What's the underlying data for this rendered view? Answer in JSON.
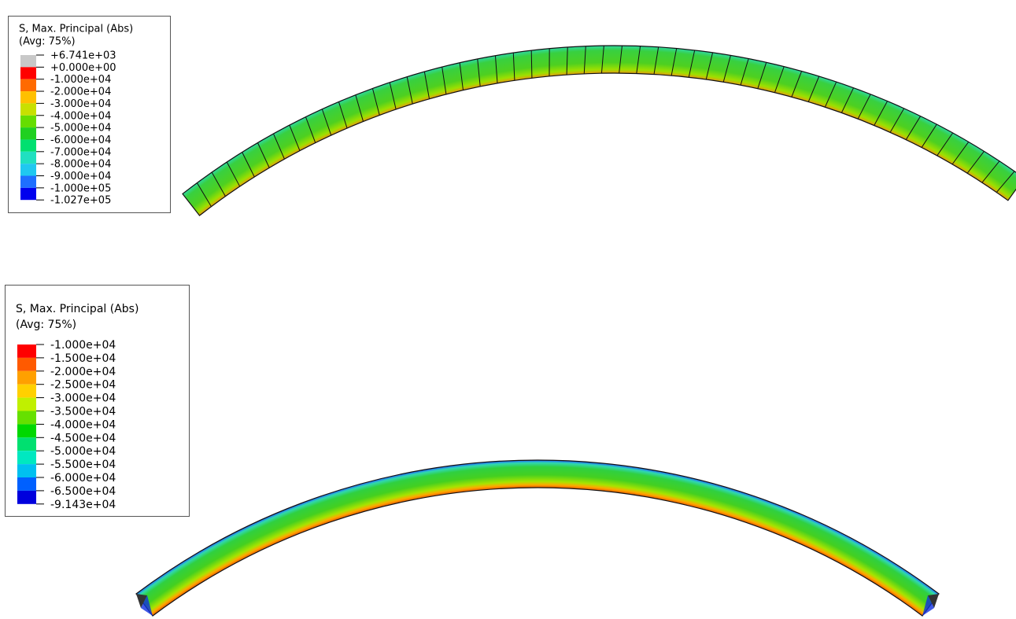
{
  "legends": [
    {
      "title": "S, Max. Principal (Abs)",
      "subtitle": "(Avg: 75%)",
      "labels": [
        "+6.741e+03",
        "+0.000e+00",
        "-1.000e+04",
        "-2.000e+04",
        "-3.000e+04",
        "-4.000e+04",
        "-5.000e+04",
        "-6.000e+04",
        "-7.000e+04",
        "-8.000e+04",
        "-9.000e+04",
        "-1.000e+05",
        "-1.027e+05"
      ],
      "colors": [
        "#c8c8c8",
        "#ff0000",
        "#ff6a00",
        "#ffc000",
        "#c8e000",
        "#66dd00",
        "#20d020",
        "#00e070",
        "#20e0c0",
        "#20c8f0",
        "#1f6fff",
        "#0000ee",
        "#333333"
      ]
    },
    {
      "title": "S, Max. Principal (Abs)",
      "subtitle": "(Avg: 75%)",
      "labels": [
        "-1.000e+04",
        "-1.500e+04",
        "-2.000e+04",
        "-2.500e+04",
        "-3.000e+04",
        "-3.500e+04",
        "-4.000e+04",
        "-4.500e+04",
        "-5.000e+04",
        "-5.500e+04",
        "-6.000e+04",
        "-6.500e+04",
        "-9.143e+04"
      ],
      "colors": [
        "#ff0000",
        "#ff5a00",
        "#ffa000",
        "#ffd000",
        "#c0f000",
        "#66e000",
        "#00d800",
        "#00e070",
        "#00e8c0",
        "#00c0f0",
        "#0060ff",
        "#0000dd",
        "#333333"
      ]
    }
  ]
}
